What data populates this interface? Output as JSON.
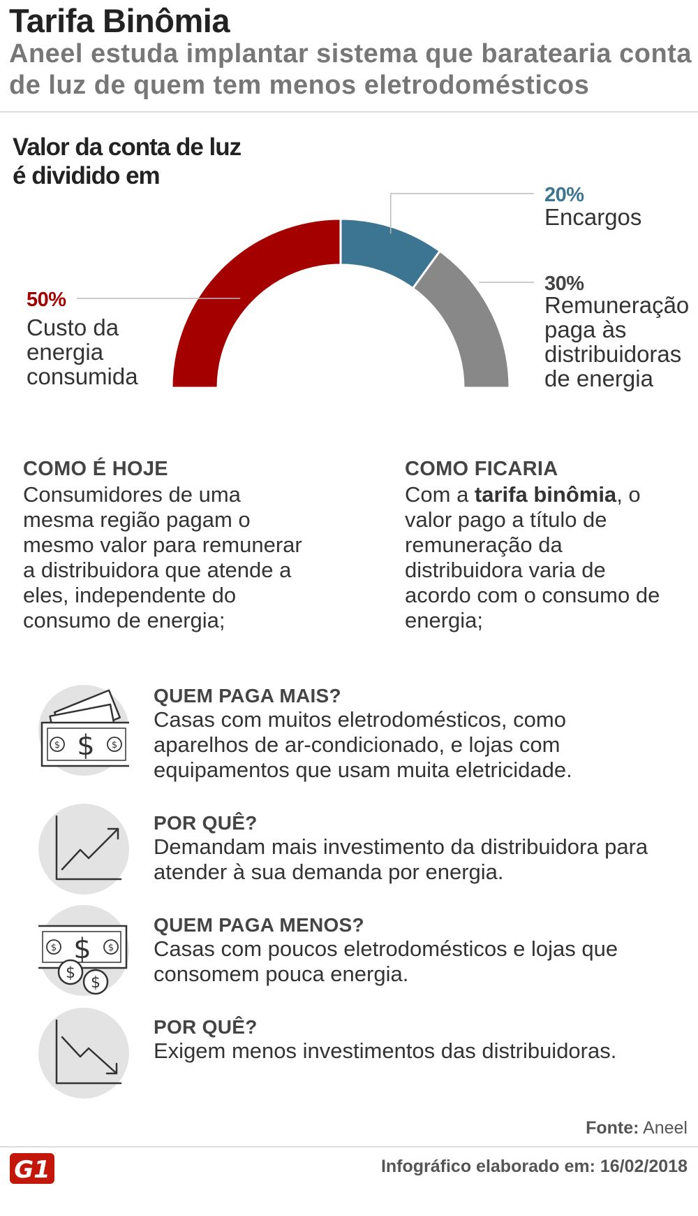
{
  "header": {
    "title": "Tarifa Binômia",
    "subtitle": "Aneel estuda implantar sistema que baratearia conta de luz de quem tem menos eletrodomésticos"
  },
  "chart_heading": "Valor da conta de luz é dividido em",
  "chart_data": {
    "type": "pie",
    "variant": "half-donut",
    "slices": [
      {
        "label_pct": "50%",
        "value": 50,
        "label": [
          "Custo da",
          "energia",
          "consumida"
        ],
        "color": "#a50000"
      },
      {
        "label_pct": "20%",
        "value": 20,
        "label": [
          "Encargos"
        ],
        "color": "#3c7591"
      },
      {
        "label_pct": "30%",
        "value": 30,
        "label": [
          "Remuneração",
          "paga às",
          "distribuidoras",
          "de energia"
        ],
        "color": "#888888"
      }
    ]
  },
  "columns": {
    "hoje": {
      "title": "COMO É HOJE",
      "lines": [
        "Consumidores de uma",
        "mesma região pagam o",
        "mesmo valor para remunerar",
        "a distribuidora que atende a",
        "eles, independente do",
        "consumo de energia;"
      ]
    },
    "ficaria": {
      "title": "COMO FICARIA",
      "line1_pre": "Com a ",
      "line1_bold": "tarifa binômia",
      "line1_post": ", o",
      "lines": [
        "valor pago a título de",
        "remuneração da",
        "distribuidora varia de",
        "acordo com o consumo de",
        "energia;"
      ]
    }
  },
  "items": [
    {
      "title": "QUEM PAGA MAIS?",
      "lines": [
        "Casas com muitos eletrodomésticos, como",
        "aparelhos de ar-condicionado, e lojas com",
        "equipamentos que usam muita eletricidade."
      ],
      "icon": "money-stack-icon"
    },
    {
      "title": "POR QUÊ?",
      "lines": [
        "Demandam mais investimento da distribuidora para",
        "atender à sua demanda por energia."
      ],
      "icon": "chart-up-icon"
    },
    {
      "title": "QUEM PAGA MENOS?",
      "lines": [
        "Casas com poucos eletrodomésticos e lojas que",
        "consomem pouca energia."
      ],
      "icon": "money-coins-icon"
    },
    {
      "title": "POR QUÊ?",
      "lines": [
        "Exigem menos investimentos das distribuidoras."
      ],
      "icon": "chart-down-icon"
    }
  ],
  "footer": {
    "source_label": "Fonte:",
    "source_value": "Aneel",
    "credit": "Infográfico elaborado em: 16/02/2018",
    "logo": "G1"
  }
}
